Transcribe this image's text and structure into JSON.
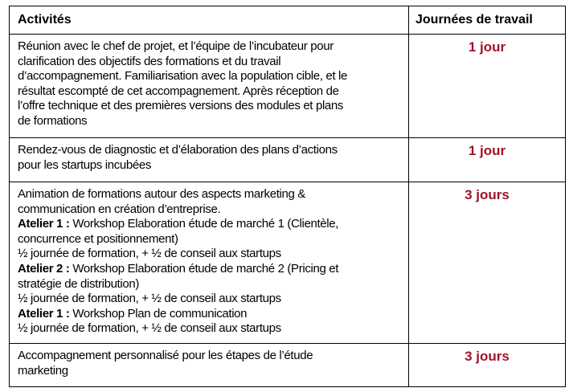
{
  "table": {
    "headers": {
      "activities": "Activités",
      "days": "Journées de travail"
    },
    "rows": [
      {
        "lines": [
          "Réunion avec le chef de projet,  et l’équipe de l’incubateur pour",
          "clarification des objectifs des formations et du travail",
          "d’accompagnement. Familiarisation avec la population cible, et le",
          "résultat escompté de cet accompagnement. Après réception de",
          "l’offre technique et des premières  versions des modules et plans",
          "de formations"
        ],
        "days": "1 jour"
      },
      {
        "lines": [
          "Rendez-vous de diagnostic et d’élaboration des plans d’actions",
          "pour les startups incubées"
        ],
        "days": "1 jour"
      },
      {
        "lines": [
          "Animation de formations autour des aspects  marketing &",
          "communication en création d’entreprise."
        ],
        "ateliers": [
          {
            "label": "Atelier 1 :",
            "lines": [
              " Workshop Elaboration étude de marché 1 (Clientèle,",
              "concurrence et positionnement)"
            ],
            "note": "½ journée de formation, + ½ de conseil aux startups"
          },
          {
            "label": "Atelier 2 :",
            "lines": [
              " Workshop Elaboration étude de marché 2 (Pricing et",
              "stratégie de distribution)"
            ],
            "note": "½ journée de formation, + ½ de conseil aux startups"
          },
          {
            "label": "Atelier 1 :",
            "lines": [
              " Workshop Plan de communication"
            ],
            "note": "½ journée de formation, + ½ de conseil aux startups"
          }
        ],
        "days": "3 jours"
      },
      {
        "lines": [
          "Accompagnement personnalisé pour les étapes de l’étude",
          "marketing"
        ],
        "days": "3 jours"
      }
    ]
  },
  "colors": {
    "days_text": "#a0142a",
    "border": "#000000"
  }
}
